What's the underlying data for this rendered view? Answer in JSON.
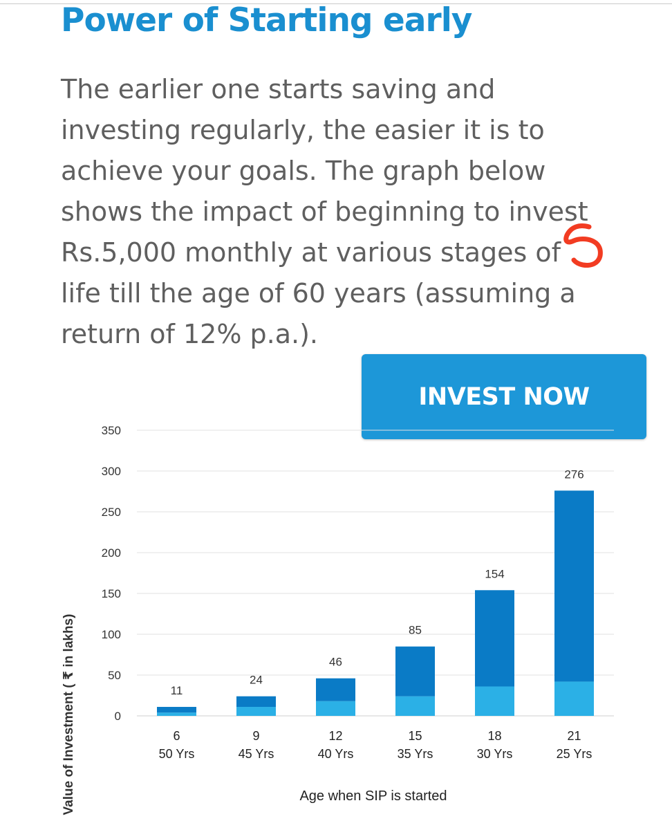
{
  "page": {
    "title": "Power of Starting early",
    "intro": "The earlier one starts saving and investing regularly, the easier it is to achieve your goals. The graph below shows the impact of beginning to invest Rs.5,000 monthly at various stages of life till the age of 60 years (assuming a return of 12% p.a.).",
    "annotation": "5",
    "invest_button": "INVEST NOW"
  },
  "colors": {
    "title": "#1a8fd0",
    "button": "#1d97d8",
    "bar_dark": "#0a7bc6",
    "bar_light": "#2bb0e6",
    "annotation": "#f23c22"
  },
  "chart_data": {
    "type": "bar",
    "stacked": true,
    "categories": [
      "6\n50 Yrs",
      "9\n45 Yrs",
      "12\n40 Yrs",
      "15\n35 Yrs",
      "18\n30 Yrs",
      "21\n25 Yrs"
    ],
    "category_lines": [
      [
        "6",
        "50 Yrs"
      ],
      [
        "9",
        "45 Yrs"
      ],
      [
        "12",
        "40 Yrs"
      ],
      [
        "15",
        "35 Yrs"
      ],
      [
        "18",
        "30 Yrs"
      ],
      [
        "21",
        "25 Yrs"
      ]
    ],
    "series": [
      {
        "values": [
          4,
          11,
          18,
          24,
          36,
          42
        ],
        "color": "#2bb0e6"
      },
      {
        "values": [
          7,
          13,
          28,
          61,
          118,
          234
        ],
        "color": "#0a7bc6"
      }
    ],
    "totals": [
      11,
      24,
      46,
      85,
      154,
      276
    ],
    "data_labels": [
      "11",
      "24",
      "46",
      "85",
      "154",
      "276"
    ],
    "ylabel": "Value of Investment ( ₹ in lakhs)",
    "xlabel": "Age when SIP is started",
    "ylim": [
      0,
      350
    ],
    "yticks": [
      0,
      50,
      100,
      150,
      200,
      250,
      300,
      350
    ],
    "grid": true
  }
}
